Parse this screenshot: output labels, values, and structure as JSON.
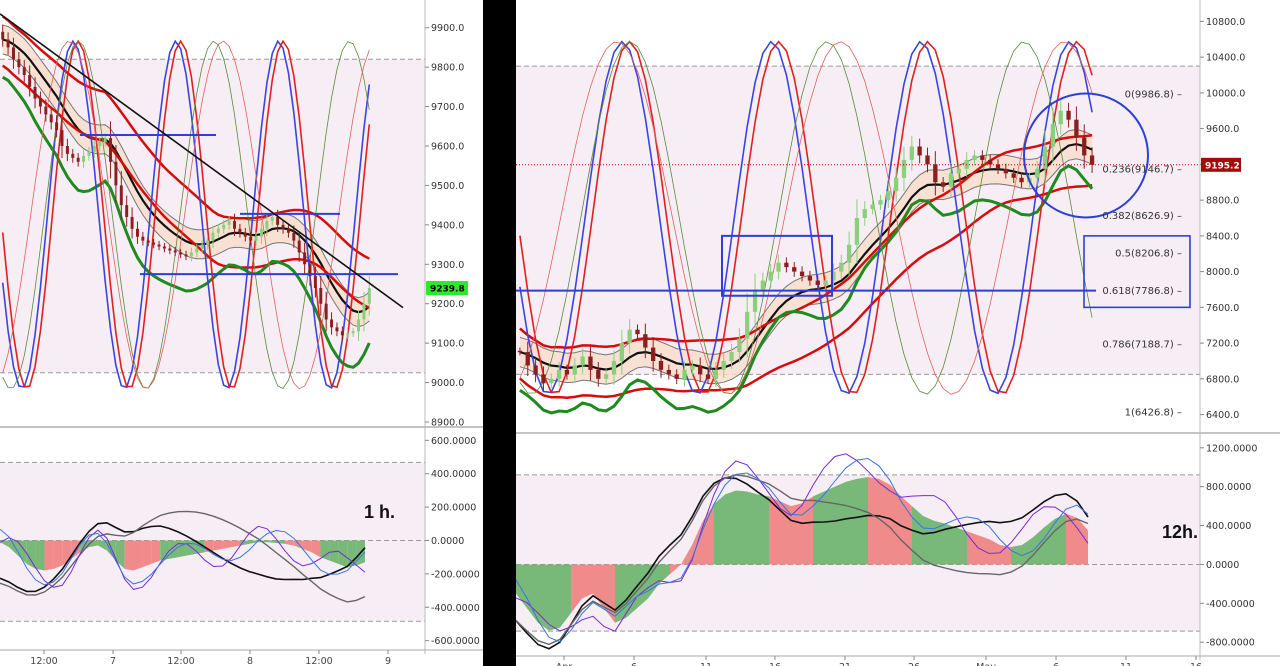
{
  "chart_data": [
    {
      "type": "line",
      "timeframe_label": "1 h.",
      "price_panel": {
        "y_ticks": [
          "9900.0",
          "9800.0",
          "9700.0",
          "9600.0",
          "9500.0",
          "9400.0",
          "9300.0",
          "9200.0",
          "9100.0",
          "9000.0",
          "8900.0"
        ],
        "ylim": [
          8900,
          9950
        ],
        "current_price_label": "9239.8",
        "current_price": 9239.8,
        "closes": [
          9870,
          9850,
          9820,
          9800,
          9780,
          9750,
          9720,
          9700,
          9680,
          9660,
          9640,
          9600,
          9580,
          9570,
          9560,
          9575,
          9585,
          9600,
          9610,
          9620,
          9560,
          9500,
          9450,
          9420,
          9390,
          9370,
          9360,
          9355,
          9350,
          9345,
          9340,
          9335,
          9330,
          9325,
          9320,
          9330,
          9340,
          9350,
          9360,
          9380,
          9390,
          9400,
          9410,
          9390,
          9380,
          9370,
          9360,
          9370,
          9390,
          9410,
          9420,
          9400,
          9390,
          9380,
          9360,
          9330,
          9300,
          9270,
          9240,
          9200,
          9160,
          9140,
          9130,
          9120,
          9125,
          9130,
          9160,
          9200,
          9239.8
        ],
        "horizontal_lines": [
          9628,
          9428,
          9275
        ],
        "dashed_levels": [
          9820,
          9025
        ]
      },
      "oscillator_panel": {
        "y_ticks": [
          "600.0000",
          "400.0000",
          "200.0000",
          "0.0000",
          "-200.0000",
          "-400.0000",
          "-600.0000"
        ],
        "ylim": [
          -620,
          650
        ],
        "histogram": [
          -10,
          -40,
          -90,
          -140,
          -170,
          -180,
          -170,
          -150,
          -110,
          -70,
          -40,
          -30,
          -60,
          -120,
          -170,
          -180,
          -160,
          -140,
          -120,
          -110,
          -100,
          -90,
          -80,
          -70,
          -60,
          -50,
          -40,
          -30,
          -20,
          -10,
          -10,
          -15,
          -20,
          -30,
          -50,
          -70,
          -100,
          -120,
          -140,
          -160,
          -150,
          -130
        ]
      },
      "x_tick_labels": [
        "12:00",
        "7",
        "12:00",
        "8",
        "12:00",
        "9"
      ]
    },
    {
      "type": "line",
      "timeframe_label": "12h.",
      "price_panel": {
        "y_ticks": [
          "10800.0",
          "10400.0",
          "10000.0",
          "9600.0",
          "9200.0",
          "8800.0",
          "8400.0",
          "8000.0",
          "7600.0",
          "7200.0",
          "6800.0",
          "6400.0"
        ],
        "ylim": [
          6250,
          10950
        ],
        "current_price_label": "9195.2",
        "current_price": 9195.2,
        "fibonacci_levels": [
          {
            "label": "0(9986.8)",
            "value": 9986.8
          },
          {
            "label": "0.236(9146.7)",
            "value": 9146.7
          },
          {
            "label": "0.382(8626.9)",
            "value": 8626.9
          },
          {
            "label": "0.5(8206.8)",
            "value": 8206.8
          },
          {
            "label": "0.618(7786.8)",
            "value": 7786.8
          },
          {
            "label": "0.786(7188.7)",
            "value": 7188.7
          },
          {
            "label": "1(6426.8)",
            "value": 6426.8
          }
        ],
        "closes": [
          7100,
          6950,
          6850,
          6750,
          6800,
          6900,
          6850,
          6950,
          7050,
          6900,
          6800,
          6850,
          7000,
          7200,
          7350,
          7300,
          7150,
          7000,
          6900,
          6850,
          6800,
          6900,
          6950,
          6850,
          6800,
          6900,
          7000,
          7100,
          7250,
          7550,
          7800,
          7900,
          8000,
          8100,
          8050,
          8000,
          7950,
          7900,
          7850,
          7900,
          8000,
          8100,
          8300,
          8600,
          8700,
          8750,
          8800,
          8900,
          9050,
          9250,
          9400,
          9300,
          9200,
          9000,
          8950,
          9100,
          9150,
          9250,
          9300,
          9250,
          9200,
          9150,
          9100,
          9050,
          9000,
          9050,
          9150,
          9400,
          9650,
          9800,
          9700,
          9500,
          9300,
          9195.2
        ],
        "horizontal_lines": [
          7786.8
        ],
        "dashed_levels": [
          10300,
          6850
        ],
        "dotted_level": 9195.2
      },
      "oscillator_panel": {
        "y_ticks": [
          "1200.0000",
          "800.0000",
          "400.0000",
          "0.0000",
          "-400.0000",
          "-800.0000"
        ],
        "ylim": [
          -880,
          1280
        ],
        "histogram": [
          -300,
          -450,
          -600,
          -680,
          -650,
          -500,
          -350,
          -300,
          -450,
          -600,
          -550,
          -450,
          -350,
          -200,
          -100,
          0,
          200,
          450,
          620,
          720,
          760,
          750,
          720,
          700,
          650,
          600,
          630,
          700,
          750,
          800,
          850,
          880,
          900,
          880,
          820,
          700,
          600,
          500,
          450,
          420,
          380,
          340,
          300,
          260,
          200,
          180,
          200,
          280,
          380,
          470,
          520,
          480,
          350
        ]
      },
      "x_tick_labels": [
        "Apr",
        "6",
        "11",
        "16",
        "21",
        "26",
        "May",
        "6",
        "11",
        "16"
      ]
    }
  ],
  "colors": {
    "bull_candle": "#8ad07c",
    "bear_candle": "#8b1f1f",
    "resistance_line": "#2c3fd6",
    "hist_positive": "#6ab36b",
    "hist_negative": "#f08080",
    "price_badge_left": "#2ee82e",
    "price_badge_right": "#a50b0b",
    "zone_band": "#f6eef4"
  }
}
